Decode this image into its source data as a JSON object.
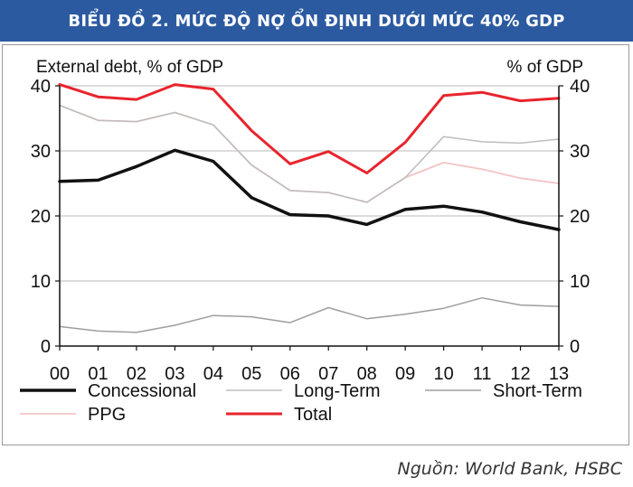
{
  "header": {
    "title": "BIỂU ĐỒ 2. MỨC ĐỘ NỢ ỔN ĐỊNH DƯỚI MỨC 40% GDP"
  },
  "source": "Nguồn: World Bank, HSBC",
  "chart_data": {
    "type": "line",
    "title": "BIỂU ĐỒ 2. MỨC ĐỘ NỢ ỔN ĐỊNH DƯỚI MỨC 40% GDP",
    "ylabel_left": "External  debt, % of GDP",
    "ylabel_right": "% of GDP",
    "ylim": [
      0,
      40
    ],
    "yticks": [
      0,
      10,
      20,
      30,
      40
    ],
    "grid": true,
    "legend_position": "bottom",
    "categories": [
      "00",
      "01",
      "02",
      "03",
      "04",
      "05",
      "06",
      "07",
      "08",
      "09",
      "10",
      "11",
      "12",
      "13"
    ],
    "series": [
      {
        "name": "Concessional",
        "color": "#111111",
        "width": 3.5,
        "values": [
          25.3,
          25.5,
          27.6,
          30.1,
          28.4,
          22.8,
          20.2,
          20.0,
          18.7,
          21.0,
          21.5,
          20.6,
          19.1,
          17.9
        ]
      },
      {
        "name": "Long-Term",
        "color": "#bdbdbd",
        "width": 1.5,
        "values": [
          37.0,
          34.7,
          34.5,
          35.9,
          34.0,
          27.8,
          23.9,
          23.6,
          22.1,
          25.9,
          32.2,
          31.4,
          31.2,
          31.8
        ]
      },
      {
        "name": "Short-Term",
        "color": "#9e9e9e",
        "width": 1.5,
        "values": [
          3.0,
          2.3,
          2.1,
          3.2,
          4.7,
          4.5,
          3.6,
          5.9,
          4.2,
          4.9,
          5.8,
          7.4,
          6.3,
          6.1
        ]
      },
      {
        "name": "PPG",
        "color": "#f2c4c4",
        "width": 1.8,
        "values": [
          37.0,
          34.7,
          34.5,
          35.9,
          34.0,
          27.8,
          23.9,
          23.6,
          22.1,
          25.9,
          28.2,
          27.2,
          25.8,
          25.0
        ]
      },
      {
        "name": "Total",
        "color": "#e8242d",
        "width": 3,
        "values": [
          40.2,
          38.3,
          37.9,
          40.2,
          39.5,
          33.1,
          28.0,
          29.9,
          26.6,
          31.3,
          38.5,
          39.0,
          37.7,
          38.1
        ]
      }
    ]
  }
}
